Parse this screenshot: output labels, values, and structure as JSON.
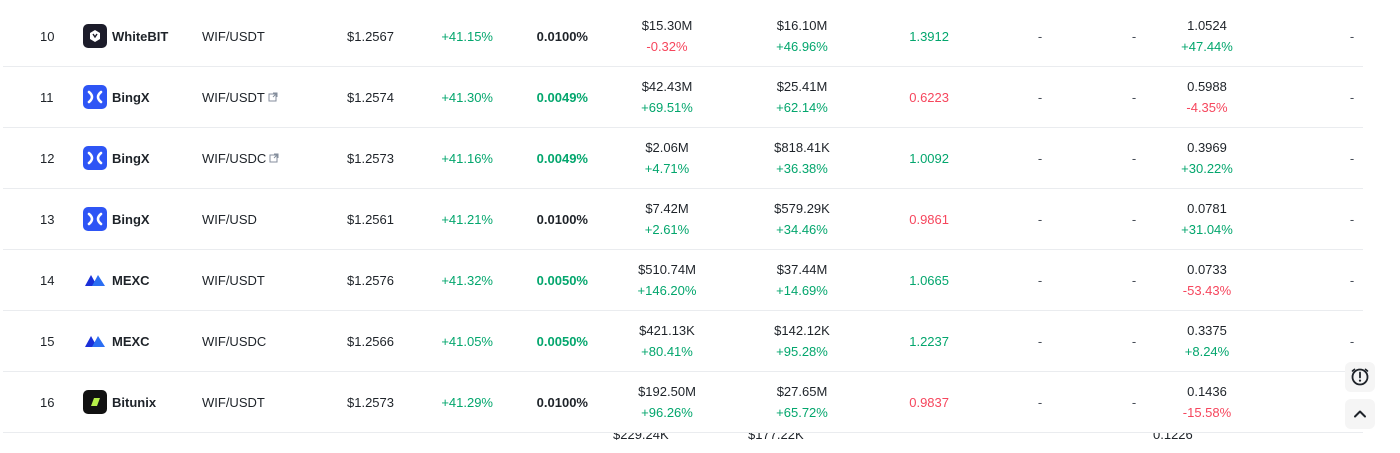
{
  "rows": [
    {
      "rank": "10",
      "exchange": "WhiteBIT",
      "logo_icon": "whitebit-logo-icon",
      "pair": "WIF/USDT",
      "ext_link": false,
      "price": "$1.2567",
      "change": "+41.15%",
      "funding": "0.0100%",
      "funding_color": "neutral",
      "volume": "$15.30M",
      "volume_change": "-0.32%",
      "volume_change_dir": "down",
      "oi": "$16.10M",
      "oi_change": "+46.96%",
      "oi_change_dir": "up",
      "ratio": "1.3912",
      "ratio_dir": "up",
      "dash1": "-",
      "dash2": "-",
      "lr": "1.0524",
      "lr_change": "+47.44%",
      "lr_change_dir": "up",
      "dash3": "-"
    },
    {
      "rank": "11",
      "exchange": "BingX",
      "logo_icon": "bingx-logo-icon",
      "pair": "WIF/USDT",
      "ext_link": true,
      "price": "$1.2574",
      "change": "+41.30%",
      "funding": "0.0049%",
      "funding_color": "green",
      "volume": "$42.43M",
      "volume_change": "+69.51%",
      "volume_change_dir": "up",
      "oi": "$25.41M",
      "oi_change": "+62.14%",
      "oi_change_dir": "up",
      "ratio": "0.6223",
      "ratio_dir": "down",
      "dash1": "-",
      "dash2": "-",
      "lr": "0.5988",
      "lr_change": "-4.35%",
      "lr_change_dir": "down",
      "dash3": "-"
    },
    {
      "rank": "12",
      "exchange": "BingX",
      "logo_icon": "bingx-logo-icon",
      "pair": "WIF/USDC",
      "ext_link": true,
      "price": "$1.2573",
      "change": "+41.16%",
      "funding": "0.0049%",
      "funding_color": "green",
      "volume": "$2.06M",
      "volume_change": "+4.71%",
      "volume_change_dir": "up",
      "oi": "$818.41K",
      "oi_change": "+36.38%",
      "oi_change_dir": "up",
      "ratio": "1.0092",
      "ratio_dir": "up",
      "dash1": "-",
      "dash2": "-",
      "lr": "0.3969",
      "lr_change": "+30.22%",
      "lr_change_dir": "up",
      "dash3": "-"
    },
    {
      "rank": "13",
      "exchange": "BingX",
      "logo_icon": "bingx-logo-icon",
      "pair": "WIF/USD",
      "ext_link": false,
      "price": "$1.2561",
      "change": "+41.21%",
      "funding": "0.0100%",
      "funding_color": "neutral",
      "volume": "$7.42M",
      "volume_change": "+2.61%",
      "volume_change_dir": "up",
      "oi": "$579.29K",
      "oi_change": "+34.46%",
      "oi_change_dir": "up",
      "ratio": "0.9861",
      "ratio_dir": "down",
      "dash1": "-",
      "dash2": "-",
      "lr": "0.0781",
      "lr_change": "+31.04%",
      "lr_change_dir": "up",
      "dash3": "-"
    },
    {
      "rank": "14",
      "exchange": "MEXC",
      "logo_icon": "mexc-logo-icon",
      "pair": "WIF/USDT",
      "ext_link": false,
      "price": "$1.2576",
      "change": "+41.32%",
      "funding": "0.0050%",
      "funding_color": "green",
      "volume": "$510.74M",
      "volume_change": "+146.20%",
      "volume_change_dir": "up",
      "oi": "$37.44M",
      "oi_change": "+14.69%",
      "oi_change_dir": "up",
      "ratio": "1.0665",
      "ratio_dir": "up",
      "dash1": "-",
      "dash2": "-",
      "lr": "0.0733",
      "lr_change": "-53.43%",
      "lr_change_dir": "down",
      "dash3": "-"
    },
    {
      "rank": "15",
      "exchange": "MEXC",
      "logo_icon": "mexc-logo-icon",
      "pair": "WIF/USDC",
      "ext_link": false,
      "price": "$1.2566",
      "change": "+41.05%",
      "funding": "0.0050%",
      "funding_color": "green",
      "volume": "$421.13K",
      "volume_change": "+80.41%",
      "volume_change_dir": "up",
      "oi": "$142.12K",
      "oi_change": "+95.28%",
      "oi_change_dir": "up",
      "ratio": "1.2237",
      "ratio_dir": "up",
      "dash1": "-",
      "dash2": "-",
      "lr": "0.3375",
      "lr_change": "+8.24%",
      "lr_change_dir": "up",
      "dash3": "-"
    },
    {
      "rank": "16",
      "exchange": "Bitunix",
      "logo_icon": "bitunix-logo-icon",
      "pair": "WIF/USDT",
      "ext_link": false,
      "price": "$1.2573",
      "change": "+41.29%",
      "funding": "0.0100%",
      "funding_color": "neutral",
      "volume": "$192.50M",
      "volume_change": "+96.26%",
      "volume_change_dir": "up",
      "oi": "$27.65M",
      "oi_change": "+65.72%",
      "oi_change_dir": "up",
      "ratio": "0.9837",
      "ratio_dir": "down",
      "dash1": "-",
      "dash2": "-",
      "lr": "0.1436",
      "lr_change": "-15.58%",
      "lr_change_dir": "down",
      "dash3": "-"
    }
  ],
  "partial_row": {
    "volume": "$229.24K",
    "oi": "$177.22K",
    "lr": "0.1226"
  },
  "colors": {
    "up": "#03a66d",
    "down": "#f6465d",
    "text": "#1e2329",
    "divider": "#eaecef"
  },
  "floating_buttons": [
    {
      "icon": "alert-clock-icon"
    },
    {
      "icon": "chevron-up-icon"
    }
  ]
}
